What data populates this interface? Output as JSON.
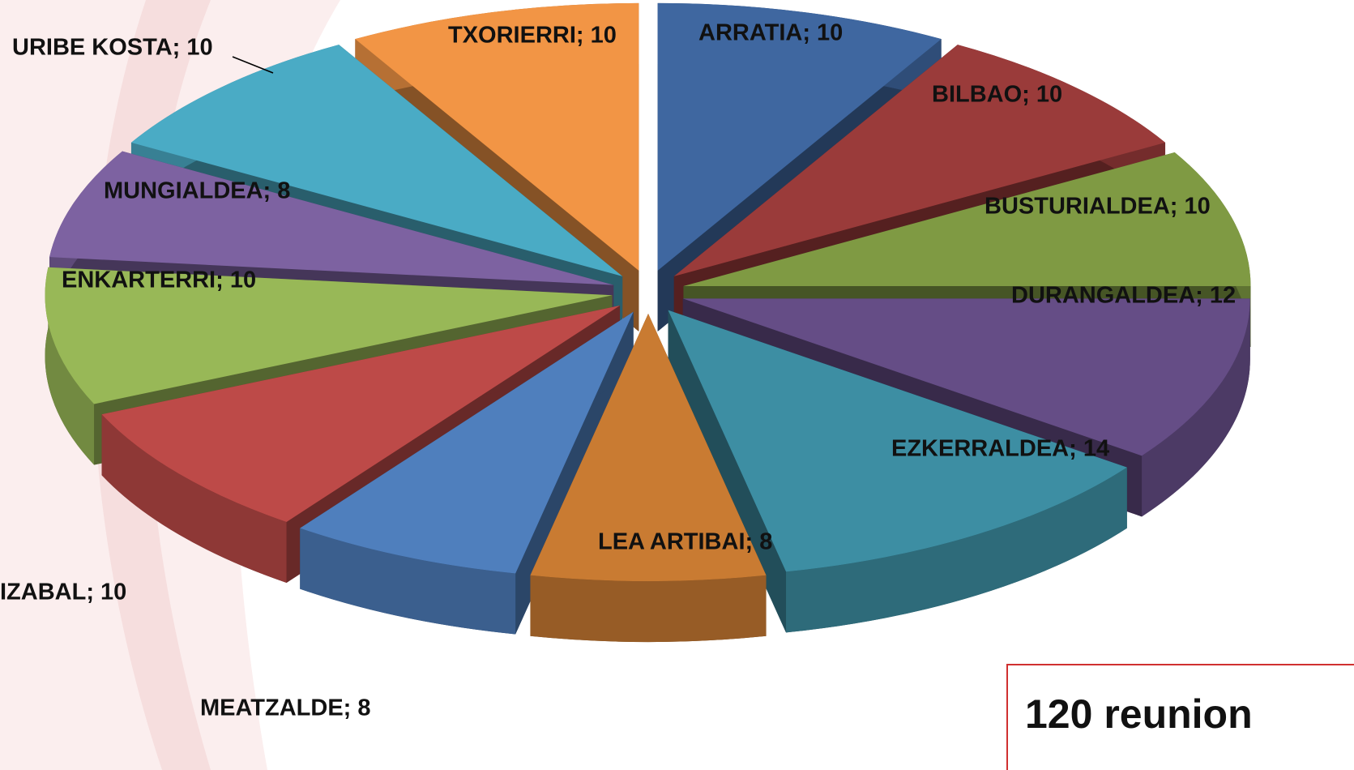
{
  "chart_data": {
    "type": "pie3d",
    "values": [
      10,
      10,
      10,
      12,
      14,
      8,
      8,
      10,
      10,
      8,
      10,
      10
    ],
    "value_labels": [
      "ARRATIA; 10",
      "BILBAO; 10",
      "BUSTURIALDEA; 10",
      "DURANGALDEA; 12",
      "EZKERRALDEA; 14",
      "LEA ARTIBAI; 8",
      "MEATZALDE; 8",
      "IZABAL; 10",
      "ENKARTERRI; 10",
      "MUNGIALDEA; 8",
      "URIBE KOSTA; 10",
      "TXORIERRI; 10"
    ],
    "colors": [
      "#3f67a0",
      "#9a3b3a",
      "#7f9a43",
      "#654d86",
      "#3d8ea3",
      "#c97b32",
      "#4f7fbd",
      "#bd4a48",
      "#98b857",
      "#7d62a1",
      "#4aabc5",
      "#f29545"
    ],
    "annotation": "120 reunion"
  }
}
